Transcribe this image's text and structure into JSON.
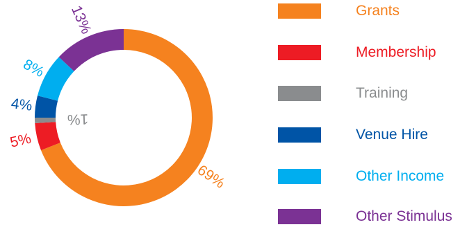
{
  "chart_data": {
    "type": "pie",
    "variant": "donut",
    "categories": [
      "Grants",
      "Membership",
      "Training",
      "Venue Hire",
      "Other Income",
      "Other Stimulus"
    ],
    "values": [
      69,
      5,
      1,
      4,
      8,
      13
    ],
    "unit": "%",
    "data_labels": [
      "69%",
      "5%",
      "1%",
      "4%",
      "8%",
      "13%"
    ],
    "colors": [
      "#f5821f",
      "#ed1c24",
      "#8a8c8e",
      "#0054a6",
      "#00aeef",
      "#7b3294"
    ],
    "legend_placement": "right",
    "slice_order": "clockwise from top",
    "legend": [
      {
        "label": "Grants",
        "color": "#f5821f"
      },
      {
        "label": "Membership",
        "color": "#ed1c24"
      },
      {
        "label": "Training",
        "color": "#8a8c8e"
      },
      {
        "label": "Venue Hire",
        "color": "#0054a6"
      },
      {
        "label": "Other Income",
        "color": "#00aeef"
      },
      {
        "label": "Other Stimulus",
        "color": "#7b3294"
      }
    ]
  }
}
